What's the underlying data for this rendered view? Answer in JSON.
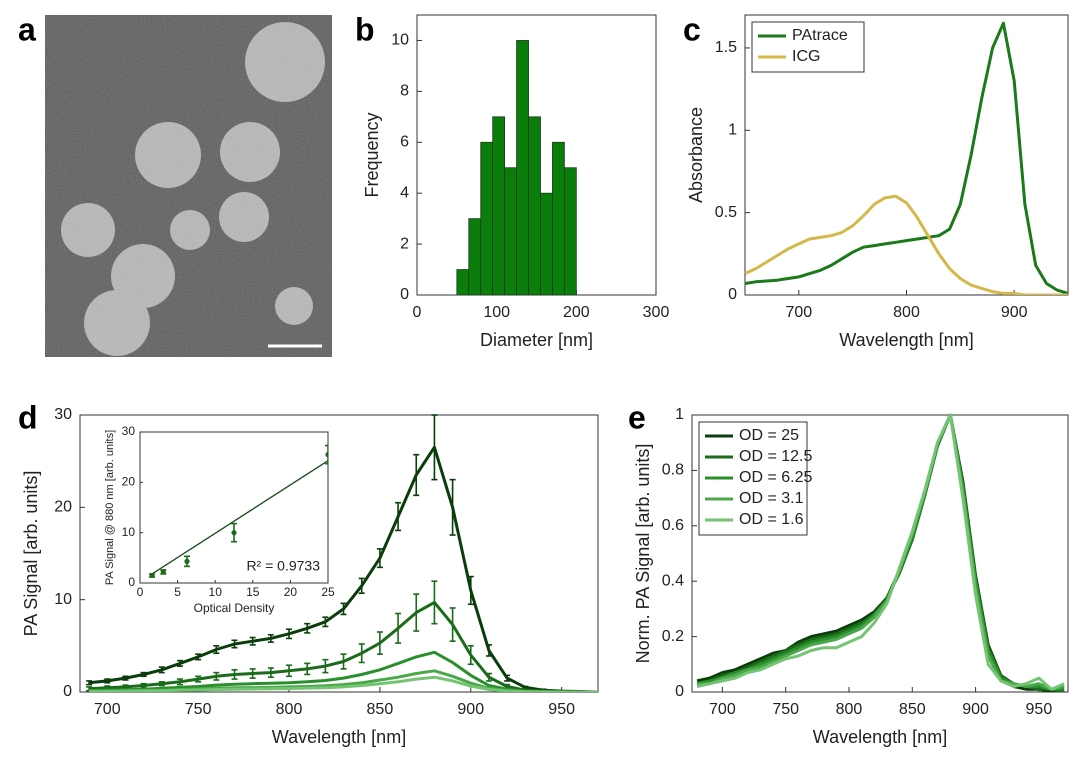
{
  "chart_data": [
    {
      "type": "image",
      "panel": "a"
    },
    {
      "type": "histogram",
      "panel": "b",
      "xlabel": "Diameter [nm]",
      "ylabel": "Frequency",
      "bins": [
        50,
        65,
        80,
        95,
        110,
        125,
        140,
        155,
        170,
        185,
        200
      ],
      "counts": [
        1,
        3,
        6,
        7,
        5,
        10,
        7,
        4,
        6,
        5
      ],
      "color": "#0a7d0a",
      "xlim": [
        0,
        300
      ],
      "xticks": [
        0,
        100,
        200,
        300
      ],
      "ylim": [
        0,
        11
      ],
      "yticks": [
        0,
        2,
        4,
        6,
        8,
        10
      ]
    },
    {
      "type": "line",
      "panel": "c",
      "xlabel": "Wavelength [nm]",
      "ylabel": "Absorbance",
      "legend": "upper-left",
      "x": [
        650,
        660,
        670,
        680,
        690,
        700,
        710,
        720,
        730,
        740,
        750,
        760,
        770,
        780,
        790,
        800,
        810,
        820,
        830,
        840,
        850,
        860,
        870,
        880,
        890,
        900,
        910,
        920,
        930,
        940,
        950
      ],
      "series": [
        {
          "name": "PAtrace",
          "color": "#1a7a1a",
          "values": [
            0.07,
            0.08,
            0.085,
            0.09,
            0.1,
            0.11,
            0.13,
            0.15,
            0.18,
            0.22,
            0.26,
            0.29,
            0.3,
            0.31,
            0.32,
            0.33,
            0.34,
            0.35,
            0.36,
            0.4,
            0.55,
            0.85,
            1.2,
            1.5,
            1.65,
            1.3,
            0.55,
            0.18,
            0.07,
            0.03,
            0.01
          ]
        },
        {
          "name": "ICG",
          "color": "#d4b84a",
          "values": [
            0.13,
            0.16,
            0.2,
            0.24,
            0.28,
            0.31,
            0.34,
            0.35,
            0.36,
            0.38,
            0.42,
            0.48,
            0.55,
            0.59,
            0.6,
            0.56,
            0.47,
            0.36,
            0.25,
            0.16,
            0.1,
            0.06,
            0.04,
            0.02,
            0.01,
            0.01,
            0,
            0,
            0,
            0,
            0
          ]
        }
      ],
      "xlim": [
        650,
        950
      ],
      "xticks": [
        700,
        800,
        900
      ],
      "ylim": [
        0,
        1.7
      ],
      "yticks": [
        0,
        0.5,
        1,
        1.5
      ]
    },
    {
      "type": "line",
      "panel": "d",
      "xlabel": "Wavelength [nm]",
      "ylabel": "PA Signal [arb. units]",
      "x": [
        690,
        700,
        710,
        720,
        730,
        740,
        750,
        760,
        770,
        780,
        790,
        800,
        810,
        820,
        830,
        840,
        850,
        860,
        870,
        880,
        890,
        900,
        910,
        920,
        930,
        940,
        950,
        960,
        970
      ],
      "series": [
        {
          "color": "#0b3d0b",
          "values": [
            1.0,
            1.2,
            1.5,
            1.9,
            2.4,
            3.1,
            3.8,
            4.6,
            5.2,
            5.5,
            5.8,
            6.3,
            6.9,
            7.6,
            9.0,
            11.5,
            14.5,
            19.0,
            23.5,
            26.5,
            20.0,
            11.0,
            4.5,
            1.5,
            0.5,
            0.2,
            0.1,
            0.05,
            0
          ],
          "errors": [
            0.2,
            0.2,
            0.2,
            0.2,
            0.3,
            0.3,
            0.3,
            0.4,
            0.4,
            0.4,
            0.4,
            0.5,
            0.5,
            0.5,
            0.6,
            0.8,
            1.0,
            1.5,
            2.2,
            3.5,
            3.0,
            1.5,
            0.6,
            0.3,
            0.1,
            0.1,
            0.05,
            0.05,
            0
          ]
        },
        {
          "color": "#1a6b1a",
          "values": [
            0.35,
            0.45,
            0.55,
            0.7,
            0.9,
            1.1,
            1.4,
            1.7,
            1.9,
            2.0,
            2.1,
            2.3,
            2.5,
            2.8,
            3.3,
            4.2,
            5.3,
            6.9,
            8.6,
            9.7,
            7.3,
            4.0,
            1.6,
            0.6,
            0.2,
            0.1,
            0.05,
            0,
            0
          ],
          "errors": [
            0.2,
            0.2,
            0.2,
            0.2,
            0.2,
            0.3,
            0.3,
            0.4,
            0.5,
            0.5,
            0.5,
            0.6,
            0.6,
            0.7,
            0.8,
            1.0,
            1.2,
            1.6,
            2.0,
            2.3,
            1.8,
            1.0,
            0.4,
            0.2,
            0.1,
            0.05,
            0,
            0,
            0
          ]
        },
        {
          "color": "#2a8f2a",
          "values": [
            0.15,
            0.2,
            0.25,
            0.3,
            0.4,
            0.5,
            0.6,
            0.75,
            0.85,
            0.9,
            0.95,
            1.0,
            1.1,
            1.25,
            1.5,
            1.9,
            2.4,
            3.1,
            3.8,
            4.3,
            3.2,
            1.8,
            0.7,
            0.3,
            0.1,
            0.05,
            0,
            0,
            0
          ]
        },
        {
          "color": "#4aa84a",
          "values": [
            0.08,
            0.1,
            0.13,
            0.16,
            0.2,
            0.26,
            0.32,
            0.4,
            0.45,
            0.48,
            0.5,
            0.55,
            0.6,
            0.67,
            0.8,
            1.0,
            1.3,
            1.6,
            2.0,
            2.3,
            1.7,
            0.95,
            0.4,
            0.15,
            0.05,
            0,
            0,
            0,
            0
          ]
        },
        {
          "color": "#74c474",
          "values": [
            0.06,
            0.07,
            0.09,
            0.11,
            0.14,
            0.18,
            0.22,
            0.27,
            0.3,
            0.33,
            0.35,
            0.38,
            0.42,
            0.47,
            0.55,
            0.7,
            0.9,
            1.1,
            1.4,
            1.6,
            1.2,
            0.65,
            0.27,
            0.1,
            0.03,
            0,
            0,
            0,
            0
          ]
        }
      ],
      "xlim": [
        685,
        970
      ],
      "xticks": [
        700,
        750,
        800,
        850,
        900,
        950
      ],
      "ylim": [
        0,
        30
      ],
      "yticks": [
        0,
        10,
        20,
        30
      ]
    },
    {
      "type": "scatter",
      "xlabel": "Optical Density",
      "ylabel": "PA Signal @ 880 nm [arb. units]",
      "annotation": "R² = 0.9733",
      "x": [
        1.6,
        3.1,
        6.25,
        12.5,
        25
      ],
      "values": [
        1.5,
        2.2,
        4.3,
        10,
        25.5
      ],
      "errors": [
        0.3,
        0.4,
        1.0,
        1.8,
        1.8
      ],
      "color": "#1a6b1a",
      "fit": {
        "x": [
          1.6,
          25
        ],
        "y": [
          1.8,
          24.3
        ]
      },
      "xlim": [
        0,
        25
      ],
      "xticks": [
        0,
        5,
        10,
        15,
        20,
        25
      ],
      "ylim": [
        0,
        30
      ],
      "yticks": [
        0,
        10,
        20,
        30
      ]
    },
    {
      "type": "line",
      "panel": "e",
      "xlabel": "Wavelength [nm]",
      "ylabel": "Norm. PA Signal [arb. units]",
      "legend": "upper-left",
      "x": [
        680,
        690,
        700,
        710,
        720,
        730,
        740,
        750,
        760,
        770,
        780,
        790,
        800,
        810,
        820,
        830,
        840,
        850,
        860,
        870,
        880,
        890,
        900,
        910,
        920,
        930,
        940,
        950,
        960,
        970
      ],
      "series": [
        {
          "name": "OD = 25",
          "color": "#0b3d0b",
          "values": [
            0.04,
            0.05,
            0.07,
            0.08,
            0.1,
            0.12,
            0.14,
            0.15,
            0.18,
            0.2,
            0.21,
            0.22,
            0.24,
            0.26,
            0.29,
            0.34,
            0.44,
            0.55,
            0.72,
            0.89,
            1.0,
            0.76,
            0.42,
            0.17,
            0.06,
            0.02,
            0.01,
            0.01,
            0,
            0
          ]
        },
        {
          "name": "OD = 12.5",
          "color": "#1a6b1a",
          "values": [
            0.03,
            0.04,
            0.06,
            0.07,
            0.09,
            0.11,
            0.13,
            0.15,
            0.17,
            0.19,
            0.2,
            0.21,
            0.23,
            0.25,
            0.28,
            0.34,
            0.43,
            0.55,
            0.71,
            0.89,
            1.0,
            0.75,
            0.41,
            0.16,
            0.06,
            0.03,
            0.02,
            0.01,
            0.01,
            0
          ]
        },
        {
          "name": "OD = 6.25",
          "color": "#2a8f2a",
          "values": [
            0.03,
            0.04,
            0.05,
            0.07,
            0.08,
            0.1,
            0.12,
            0.14,
            0.16,
            0.18,
            0.19,
            0.2,
            0.22,
            0.24,
            0.28,
            0.33,
            0.44,
            0.56,
            0.72,
            0.9,
            1.0,
            0.74,
            0.4,
            0.15,
            0.05,
            0.03,
            0.02,
            0.02,
            0.01,
            0.01
          ]
        },
        {
          "name": "OD = 3.1",
          "color": "#4aa84a",
          "values": [
            0.03,
            0.03,
            0.05,
            0.06,
            0.08,
            0.09,
            0.11,
            0.13,
            0.15,
            0.17,
            0.18,
            0.19,
            0.21,
            0.23,
            0.27,
            0.33,
            0.44,
            0.57,
            0.72,
            0.9,
            1.0,
            0.72,
            0.38,
            0.13,
            0.04,
            0.03,
            0.02,
            0.03,
            0.01,
            0.02
          ]
        },
        {
          "name": "OD = 1.6",
          "color": "#74c474",
          "values": [
            0.02,
            0.03,
            0.04,
            0.05,
            0.07,
            0.08,
            0.1,
            0.12,
            0.13,
            0.15,
            0.16,
            0.16,
            0.18,
            0.2,
            0.25,
            0.32,
            0.45,
            0.58,
            0.73,
            0.9,
            1.0,
            0.7,
            0.35,
            0.1,
            0.04,
            0.02,
            0.03,
            0.05,
            0.01,
            0.03
          ]
        }
      ],
      "xlim": [
        676,
        973
      ],
      "xticks": [
        700,
        750,
        800,
        850,
        900,
        950
      ],
      "ylim": [
        0,
        1
      ],
      "yticks": [
        0,
        0.2,
        0.4,
        0.6,
        0.8,
        1
      ]
    }
  ]
}
